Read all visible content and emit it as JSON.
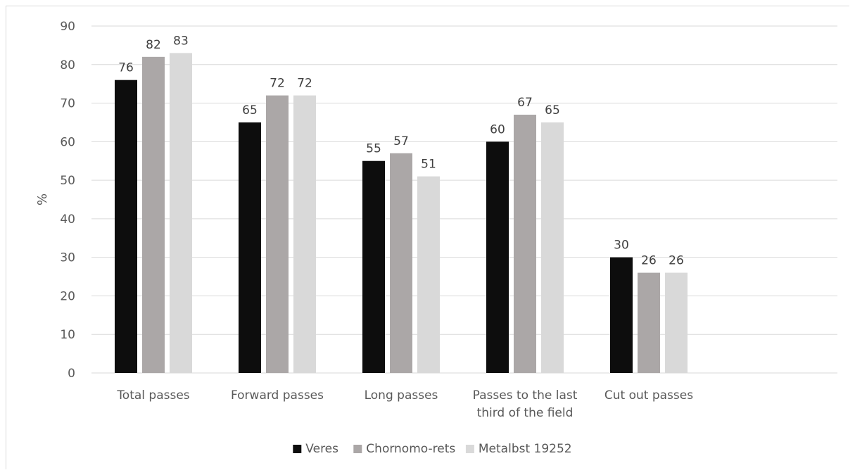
{
  "chart_data": {
    "type": "bar",
    "ylabel": "%",
    "ylim": [
      0,
      90
    ],
    "yticks": [
      0,
      10,
      20,
      30,
      40,
      50,
      60,
      70,
      80,
      90
    ],
    "categories": [
      [
        "Total passes"
      ],
      [
        "Forward passes"
      ],
      [
        "Long passes"
      ],
      [
        "Passes to the last",
        "third of the field"
      ],
      [
        "Cut out passes"
      ]
    ],
    "series": [
      {
        "name": "Veres",
        "color": "#0d0d0d",
        "values": [
          76,
          65,
          55,
          60,
          30
        ]
      },
      {
        "name": "Chornomo-rets",
        "color": "#aba7a7",
        "values": [
          82,
          72,
          57,
          67,
          26
        ]
      },
      {
        "name": "Metalbst 19252",
        "color": "#d9d9d9",
        "values": [
          83,
          72,
          51,
          65,
          26
        ]
      }
    ],
    "grid": true,
    "legend": "bottom"
  }
}
